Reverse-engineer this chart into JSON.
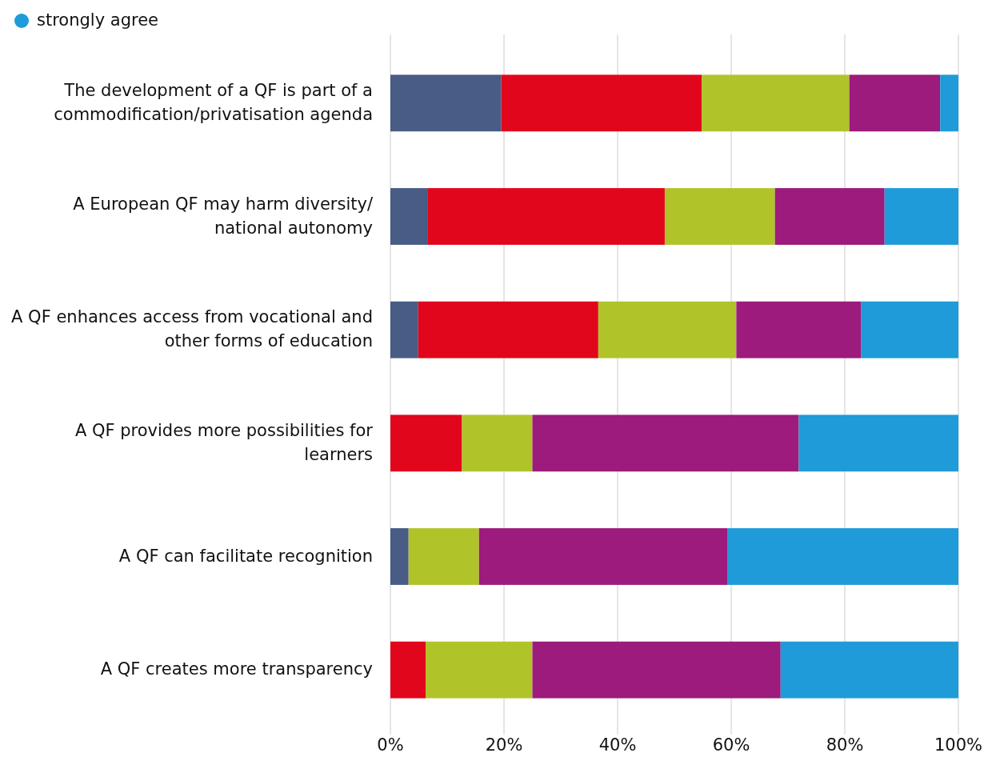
{
  "chart_data": {
    "type": "bar",
    "orientation": "horizontal",
    "stacked": true,
    "categories": [
      "The development of a QF is part of a commodification/privatisation agenda",
      "A European QF may harm diversity/ national autonomy",
      "A QF enhances access from vocational and other forms of education",
      "A QF provides more possibilities for learners",
      "A QF can facilitate recognition",
      "A QF creates more transparency"
    ],
    "series": [
      {
        "color": "#485c85",
        "values": [
          19.5,
          6.5,
          4.9,
          0,
          3.2,
          0
        ]
      },
      {
        "color": "#e2061c",
        "values": [
          35.3,
          41.8,
          31.7,
          12.6,
          0,
          6.2
        ]
      },
      {
        "color": "#b0c42a",
        "values": [
          26,
          19.4,
          24.3,
          12.4,
          12.4,
          18.8
        ]
      },
      {
        "color": "#9c1b7c",
        "values": [
          16,
          19.3,
          22,
          46.9,
          43.7,
          43.7
        ]
      },
      {
        "name": "strongly agree",
        "color": "#1e9bd8",
        "values": [
          3.2,
          13,
          17.1,
          28.1,
          40.7,
          31.3
        ]
      }
    ],
    "xlim": [
      0,
      100
    ],
    "xticks": [
      {
        "value": 0,
        "label": "0%"
      },
      {
        "value": 20,
        "label": "20%"
      },
      {
        "value": 40,
        "label": "40%"
      },
      {
        "value": 60,
        "label": "60%"
      },
      {
        "value": 80,
        "label": "80%"
      },
      {
        "value": 100,
        "label": "100%"
      }
    ],
    "grid": "x",
    "legend": "top left"
  }
}
